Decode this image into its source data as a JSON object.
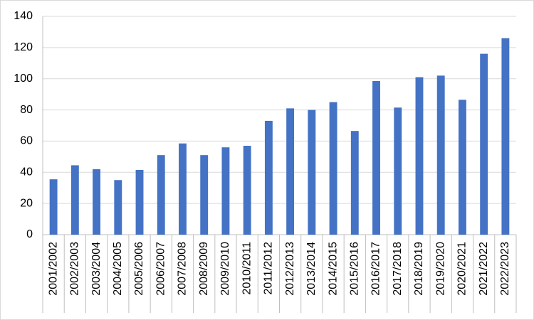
{
  "chart_data": {
    "type": "bar",
    "categories": [
      "2001/2002",
      "2002/2003",
      "2003/2004",
      "2004/2005",
      "2005/2006",
      "2006/2007",
      "2007/2008",
      "2008/2009",
      "2009/2010",
      "2010/2011",
      "2011/2012",
      "2012/2013",
      "2013/2014",
      "2014/2015",
      "2015/2016",
      "2016/2017",
      "2017/2018",
      "2018/2019",
      "2019/2020",
      "2020/2021",
      "2021/2022",
      "2022/2023"
    ],
    "values": [
      35.5,
      44.5,
      42,
      35,
      41.5,
      51,
      58.5,
      51,
      56,
      57,
      73,
      81,
      80,
      85,
      66.5,
      98.5,
      81.5,
      101,
      102,
      86.5,
      116,
      126
    ],
    "color": "#4472c4",
    "ylim": [
      0,
      140
    ],
    "yticks": [
      0,
      20,
      40,
      60,
      80,
      100,
      120,
      140
    ],
    "grid": true
  }
}
